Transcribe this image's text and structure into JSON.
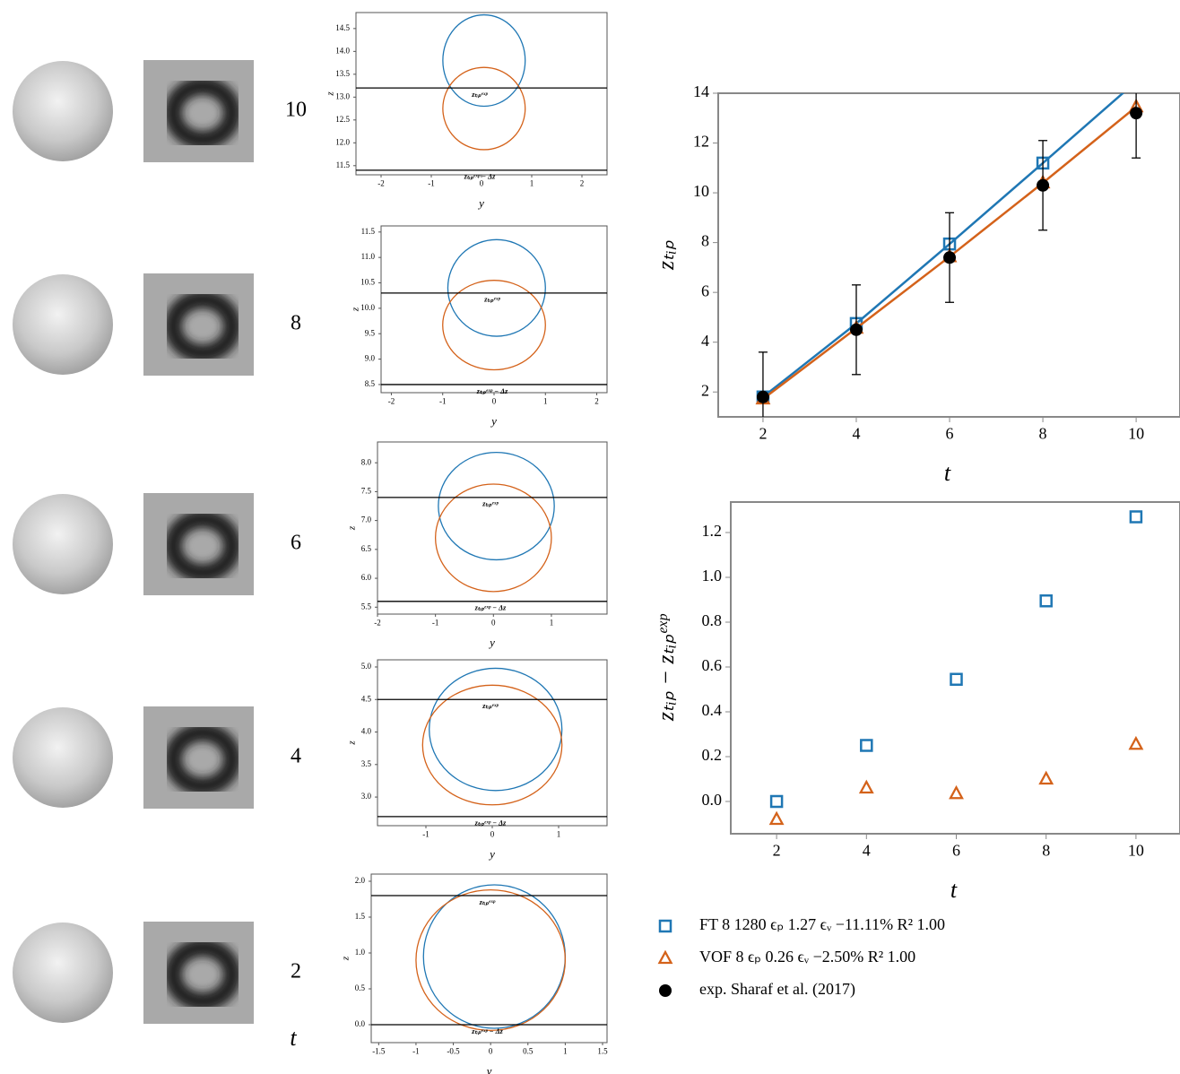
{
  "time_labels": [
    10,
    8,
    6,
    4,
    2
  ],
  "time_axis_label": "t",
  "chart_data": [
    {
      "type": "contour",
      "xlabel": "y",
      "ylabel": "z",
      "xlim": [
        -2.5,
        2.5
      ],
      "ylim": [
        11.3,
        14.85
      ],
      "xticks": [
        -2,
        -1,
        0,
        1,
        2
      ],
      "yticks": [
        11.5,
        {
          "value": 12,
          "label": "12.0"
        },
        12.5,
        {
          "value": 13,
          "label": "13.0"
        },
        13.5,
        {
          "value": 14,
          "label": "14.0"
        },
        14.5
      ],
      "shapes": [
        {
          "color": "#1f77b4",
          "center": [
            0.05,
            13.8
          ],
          "radius": [
            0.82,
            1.0
          ]
        },
        {
          "color": "#d4621a",
          "center": [
            0.05,
            12.75
          ],
          "radius": [
            0.82,
            0.9
          ]
        }
      ],
      "hlines": [
        {
          "value": 13.2,
          "label": "zₜᵢₚᵉˣᵖ"
        },
        {
          "value": 11.4,
          "label": "zₜᵢₚᵉˣᵖ − Δz"
        }
      ]
    },
    {
      "type": "contour",
      "xlabel": "y",
      "ylabel": "z",
      "xlim": [
        -2.2,
        2.2
      ],
      "ylim": [
        8.34,
        11.62
      ],
      "xticks": [
        -2,
        -1,
        0,
        1,
        2
      ],
      "yticks": [
        8.5,
        {
          "value": 9,
          "label": "9.0"
        },
        9.5,
        {
          "value": 10,
          "label": "10.0"
        },
        10.5,
        {
          "value": 11,
          "label": "11.0"
        },
        11.5
      ],
      "shapes": [
        {
          "color": "#1f77b4",
          "center": [
            0.05,
            10.4
          ],
          "radius": [
            0.95,
            0.95
          ]
        },
        {
          "color": "#d4621a",
          "center": [
            0.0,
            9.67
          ],
          "radius": [
            1.0,
            0.88
          ]
        }
      ],
      "hlines": [
        {
          "value": 10.3,
          "label": "zₜᵢₚᵉˣᵖ"
        },
        {
          "value": 8.5,
          "label": "zₜᵢₚᵉˣᵖ − Δz"
        }
      ]
    },
    {
      "type": "contour",
      "xlabel": "y",
      "ylabel": "z",
      "xlim": [
        -2.0,
        1.96
      ],
      "ylim": [
        5.38,
        8.36
      ],
      "xticks": [
        -2,
        -1,
        0,
        1
      ],
      "yticks": [
        5.5,
        {
          "value": 6,
          "label": "6.0"
        },
        6.5,
        {
          "value": 7,
          "label": "7.0"
        },
        7.5,
        {
          "value": 8,
          "label": "8.0"
        }
      ],
      "shapes": [
        {
          "color": "#1f77b4",
          "center": [
            0.05,
            7.25
          ],
          "radius": [
            1.0,
            0.93
          ]
        },
        {
          "color": "#d4621a",
          "center": [
            0.0,
            6.7
          ],
          "radius": [
            1.0,
            0.93
          ]
        }
      ],
      "hlines": [
        {
          "value": 7.4,
          "label": "zₜᵢₚᵉˣᵖ"
        },
        {
          "value": 5.6,
          "label": "zₜᵢₚᵉˣᵖ − Δz"
        }
      ]
    },
    {
      "type": "contour",
      "xlabel": "y",
      "ylabel": "z",
      "xlim": [
        -1.73,
        1.73
      ],
      "ylim": [
        2.56,
        5.11
      ],
      "xticks": [
        -1,
        0,
        1
      ],
      "yticks": [
        {
          "value": 3,
          "label": "3.0"
        },
        3.5,
        {
          "value": 4,
          "label": "4.0"
        },
        4.5,
        {
          "value": 5,
          "label": "5.0"
        }
      ],
      "shapes": [
        {
          "color": "#1f77b4",
          "center": [
            0.05,
            4.04
          ],
          "radius": [
            1.0,
            0.94
          ]
        },
        {
          "color": "#d4621a",
          "center": [
            0.0,
            3.8
          ],
          "radius": [
            1.05,
            0.92
          ]
        }
      ],
      "hlines": [
        {
          "value": 4.5,
          "label": "zₜᵢₚᵉˣᵖ"
        },
        {
          "value": 2.7,
          "label": "zₜᵢₚᵉˣᵖ − Δz"
        }
      ]
    },
    {
      "type": "contour",
      "xlabel": "y",
      "ylabel": "z",
      "xlim": [
        -1.6,
        1.56
      ],
      "ylim": [
        -0.25,
        2.1
      ],
      "xticks": [
        -1.5,
        -1,
        -0.5,
        0,
        0.5,
        1,
        1.5
      ],
      "yticks": [
        {
          "value": 0,
          "label": "0.0"
        },
        0.5,
        {
          "value": 1,
          "label": "1.0"
        },
        1.5,
        {
          "value": 2,
          "label": "2.0"
        }
      ],
      "shapes": [
        {
          "color": "#1f77b4",
          "center": [
            0.05,
            0.95
          ],
          "radius": [
            0.95,
            1.0
          ]
        },
        {
          "color": "#d4621a",
          "center": [
            0.0,
            0.9
          ],
          "radius": [
            1.0,
            0.98
          ]
        }
      ],
      "hlines": [
        {
          "value": 1.8,
          "label": "zₜᵢₚᵉˣᵖ"
        },
        {
          "value": 0,
          "label": "zₜᵢₚᵉˣᵖ − Δz"
        }
      ]
    },
    {
      "type": "line",
      "xlabel": "t",
      "ylabel": "zₜᵢₚ",
      "xlim": [
        1.04,
        10.94
      ],
      "ylim": [
        1,
        14
      ],
      "xticks": [
        2,
        4,
        6,
        8,
        10
      ],
      "yticks": [
        2,
        4,
        6,
        8,
        10,
        12,
        14
      ],
      "x": [
        2,
        4,
        6,
        8,
        10
      ],
      "series": [
        {
          "name": "FT 8 1280 ϵₚ 1.27 ϵᵥ −11.11% R² 1.00",
          "color": "#1f77b4",
          "marker": "square",
          "line": true,
          "values": [
            1.8,
            4.75,
            7.945,
            11.195,
            14.47
          ]
        },
        {
          "name": "VOF 8 ϵₚ 0.26 ϵᵥ −2.50% R² 1.00",
          "color": "#d4621a",
          "marker": "triangle",
          "line": true,
          "values": [
            1.72,
            4.56,
            7.435,
            10.4,
            13.455
          ]
        },
        {
          "name": "exp. Sharaf et al. (2017)",
          "color": "#000000",
          "marker": "circle",
          "line": false,
          "values": [
            1.8,
            4.5,
            7.4,
            10.3,
            13.2
          ],
          "errors": [
            1.8,
            1.8,
            1.8,
            1.8,
            1.8
          ]
        }
      ]
    },
    {
      "type": "scatter",
      "xlabel": "t",
      "ylabel": "zₜᵢₚ − zₜᵢₚᵉˣᵖ",
      "xlim": [
        0.98,
        10.98
      ],
      "ylim": [
        -0.144,
        1.336
      ],
      "xticks": [
        2,
        4,
        6,
        8,
        10
      ],
      "yticks": [
        {
          "value": 0,
          "label": "0.0"
        },
        0.2,
        0.4,
        0.6,
        0.8,
        {
          "value": 1,
          "label": "1.0"
        },
        1.2
      ],
      "x": [
        2,
        4,
        6,
        8,
        10
      ],
      "series": [
        {
          "color": "#1f77b4",
          "marker": "square",
          "values": [
            0.0,
            0.25,
            0.545,
            0.895,
            1.27
          ]
        },
        {
          "color": "#d4621a",
          "marker": "triangle",
          "values": [
            -0.08,
            0.06,
            0.035,
            0.1,
            0.255
          ]
        }
      ]
    }
  ]
}
